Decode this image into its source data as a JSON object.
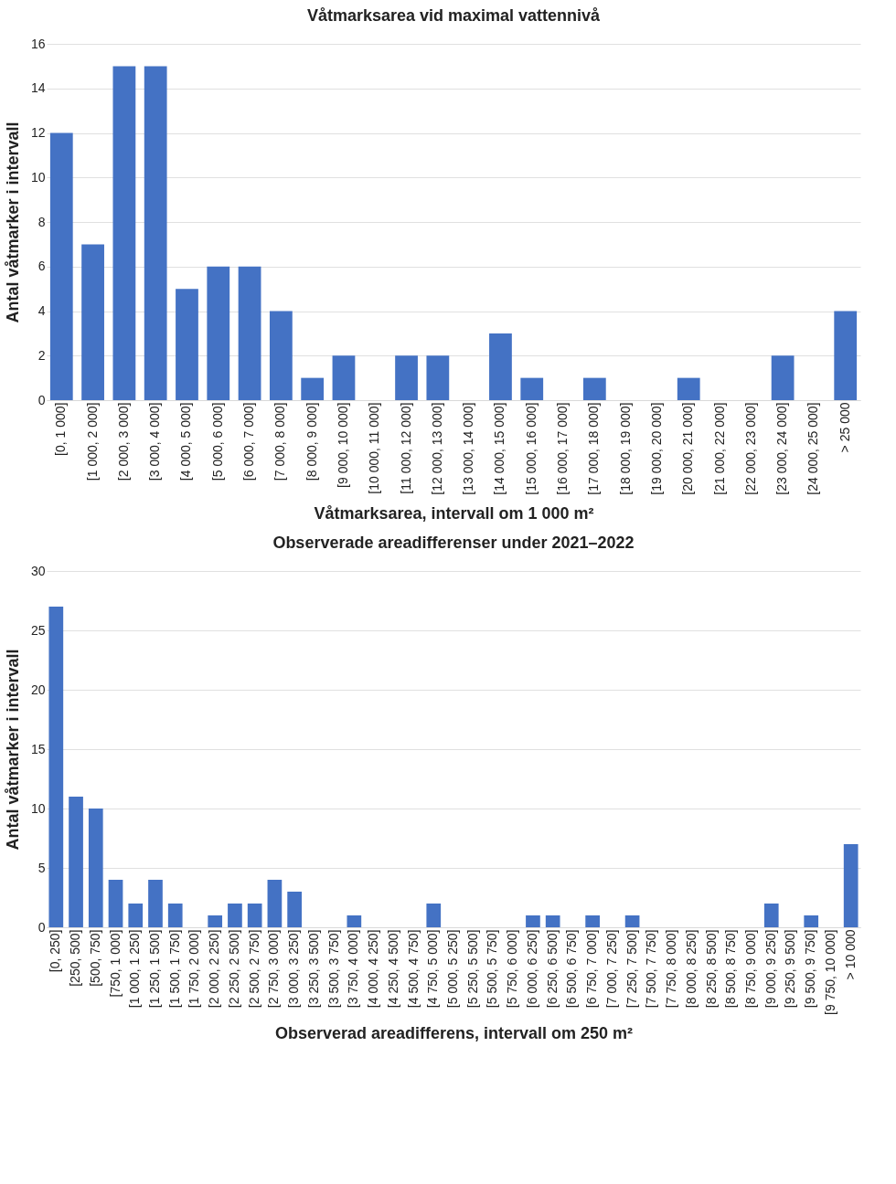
{
  "chart_data": [
    {
      "type": "bar",
      "title": "Våtmarksarea vid maximal vattennivå",
      "xlabel": "Våtmarksarea, intervall om 1 000 m²",
      "ylabel": "Antal våtmarker i intervall",
      "categories": [
        "[0, 1 000]",
        "[1 000, 2 000]",
        "[2 000, 3 000]",
        "[3 000, 4 000]",
        "[4 000, 5 000]",
        "[5 000, 6 000]",
        "[6 000, 7 000]",
        "[7 000, 8 000]",
        "[8 000, 9 000]",
        "[9 000, 10 000]",
        "[10 000, 11 000]",
        "[11 000, 12 000]",
        "[12 000, 13 000]",
        "[13 000, 14 000]",
        "[14 000, 15 000]",
        "[15 000, 16 000]",
        "[16 000, 17 000]",
        "[17 000, 18 000]",
        "[18 000, 19 000]",
        "[19 000, 20 000]",
        "[20 000, 21 000]",
        "[21 000, 22 000]",
        "[22 000, 23 000]",
        "[23 000, 24 000]",
        "[24 000, 25 000]",
        "> 25 000"
      ],
      "values": [
        12,
        7,
        15,
        15,
        5,
        6,
        6,
        4,
        1,
        2,
        0,
        2,
        2,
        0,
        3,
        1,
        0,
        1,
        0,
        0,
        1,
        0,
        0,
        2,
        0,
        4
      ],
      "color": "#4472c4",
      "ylim": [
        0,
        16
      ],
      "yticks": [
        0,
        2,
        4,
        6,
        8,
        10,
        12,
        14,
        16
      ],
      "grid": "y"
    },
    {
      "type": "bar",
      "title": "Observerade areadifferenser under 2021–2022",
      "xlabel": "Observerad areadifferens, intervall om 250 m²",
      "ylabel": "Antal våtmarker i intervall",
      "categories": [
        "[0, 250]",
        "[250, 500]",
        "[500, 750]",
        "[750, 1 000]",
        "[1 000, 1 250]",
        "[1 250, 1 500]",
        "[1 500, 1 750]",
        "[1 750, 2 000]",
        "[2 000, 2 250]",
        "[2 250, 2 500]",
        "[2 500, 2 750]",
        "[2 750, 3 000]",
        "[3 000, 3 250]",
        "[3 250, 3 500]",
        "[3 500, 3 750]",
        "[3 750, 4 000]",
        "[4 000, 4 250]",
        "[4 250, 4 500]",
        "[4 500, 4 750]",
        "[4 750, 5 000]",
        "[5 000, 5 250]",
        "[5 250, 5 500]",
        "[5 500, 5 750]",
        "[5 750, 6 000]",
        "[6 000, 6 250]",
        "[6 250, 6 500]",
        "[6 500, 6 750]",
        "[6 750, 7 000]",
        "[7 000, 7 250]",
        "[7 250, 7 500]",
        "[7 500, 7 750]",
        "[7 750, 8 000]",
        "[8 000, 8 250]",
        "[8 250, 8 500]",
        "[8 500, 8 750]",
        "[8 750, 9 000]",
        "[9 000, 9 250]",
        "[9 250, 9 500]",
        "[9 500, 9 750]",
        "[9 750, 10 000]",
        "> 10 000"
      ],
      "values": [
        27,
        11,
        10,
        4,
        2,
        4,
        2,
        0,
        1,
        2,
        2,
        4,
        3,
        0,
        0,
        1,
        0,
        0,
        0,
        2,
        0,
        0,
        0,
        0,
        1,
        1,
        0,
        1,
        0,
        1,
        0,
        0,
        0,
        0,
        0,
        0,
        2,
        0,
        1,
        0,
        7
      ],
      "color": "#4472c4",
      "ylim": [
        0,
        30
      ],
      "yticks": [
        0,
        5,
        10,
        15,
        20,
        25,
        30
      ],
      "grid": "y"
    }
  ]
}
